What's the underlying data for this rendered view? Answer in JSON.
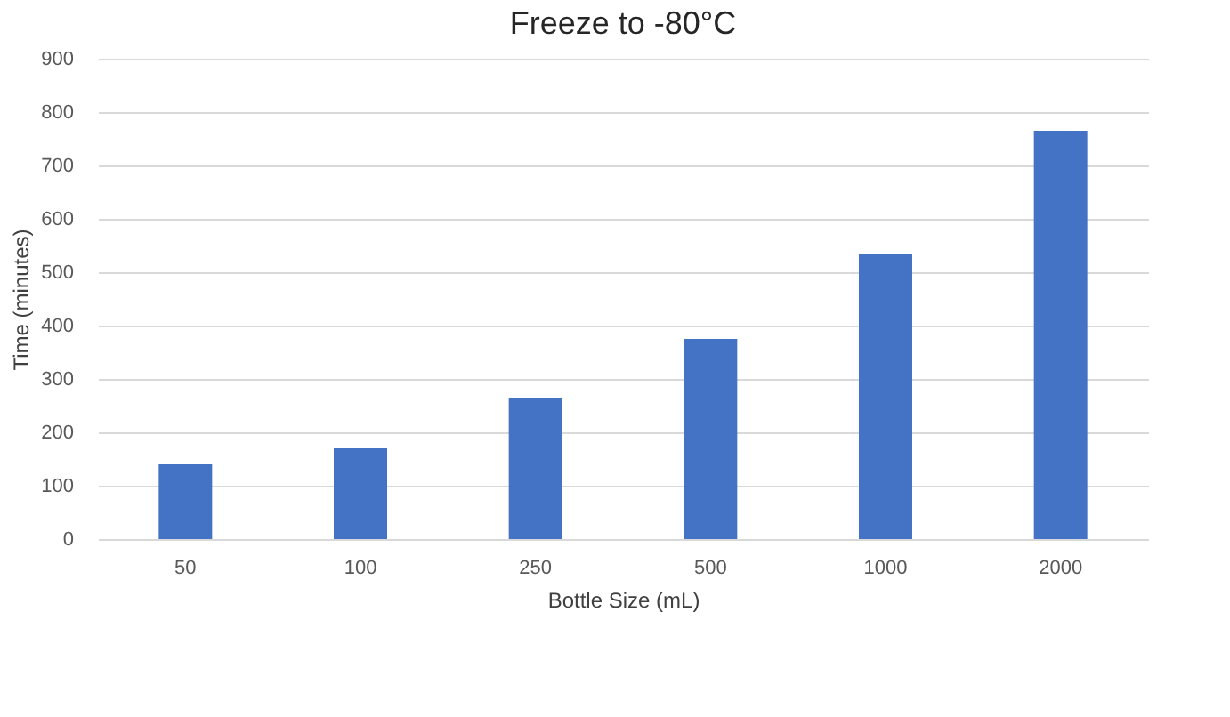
{
  "chart_data": {
    "type": "bar",
    "title": "Freeze to -80°C",
    "xlabel": "Bottle Size (mL)",
    "ylabel": "Time (minutes)",
    "categories": [
      "50",
      "100",
      "250",
      "500",
      "1000",
      "2000"
    ],
    "values": [
      140,
      170,
      265,
      375,
      535,
      765
    ],
    "color": "#4472c4",
    "ylim": [
      0,
      900
    ],
    "yticks": [
      0,
      100,
      200,
      300,
      400,
      500,
      600,
      700,
      800,
      900
    ],
    "grid": "y"
  }
}
